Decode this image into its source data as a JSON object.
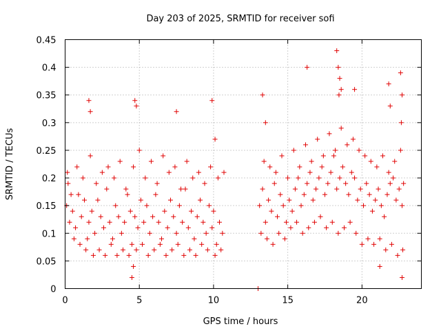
{
  "chart_data": {
    "type": "scatter",
    "title": "Day 203 of 2025, SRMTID for receiver sofi",
    "xlabel": "GPS time / hours",
    "ylabel": "SRMTID / TECUs",
    "xlim": [
      0,
      24
    ],
    "ylim": [
      0,
      0.45
    ],
    "x_ticks": [
      0,
      5,
      10,
      15,
      20
    ],
    "x_tick_labels": [
      "0",
      "5",
      "10",
      "15",
      "20"
    ],
    "y_ticks": [
      0,
      0.05,
      0.1,
      0.15,
      0.2,
      0.25,
      0.3,
      0.35,
      0.4,
      0.45
    ],
    "y_tick_labels": [
      "0",
      "0.05",
      "0.1",
      "0.15",
      "0.2",
      "0.25",
      "0.3",
      "0.35",
      "0.4",
      "0.45"
    ],
    "grid": true,
    "marker": "+",
    "color": "#e00000",
    "series": [
      {
        "name": "SRMTID",
        "x": [
          0.1,
          0.2,
          0.3,
          0.5,
          0.7,
          0.9,
          1.1,
          1.3,
          1.5,
          1.6,
          1.8,
          2.0,
          2.2,
          2.4,
          2.6,
          2.8,
          3.0,
          3.2,
          3.4,
          3.6,
          3.8,
          4.0,
          4.2,
          4.4,
          4.5,
          4.7,
          4.9,
          5.1,
          5.3,
          5.5,
          5.7,
          5.9,
          6.1,
          6.3,
          6.5,
          6.7,
          6.9,
          7.1,
          7.3,
          7.5,
          7.7,
          7.9,
          8.1,
          8.3,
          8.5,
          8.7,
          8.9,
          9.1,
          9.3,
          9.5,
          9.7,
          9.9,
          10.0,
          10.2,
          10.4,
          10.6,
          0.15,
          0.4,
          0.6,
          0.8,
          1.0,
          1.2,
          1.4,
          1.7,
          1.9,
          2.1,
          2.3,
          2.5,
          2.7,
          2.9,
          3.1,
          3.3,
          3.5,
          3.7,
          3.9,
          4.1,
          4.3,
          4.6,
          4.8,
          5.0,
          5.2,
          5.4,
          5.6,
          5.8,
          6.0,
          6.2,
          6.4,
          6.6,
          6.8,
          7.0,
          7.2,
          7.4,
          7.6,
          7.8,
          8.0,
          8.2,
          8.4,
          8.6,
          8.8,
          9.0,
          9.2,
          9.4,
          9.6,
          9.8,
          10.1,
          10.3,
          10.5,
          10.7,
          13.1,
          13.3,
          13.5,
          13.7,
          13.9,
          14.1,
          14.3,
          14.5,
          14.7,
          14.9,
          15.1,
          15.3,
          15.5,
          15.7,
          15.9,
          16.1,
          16.3,
          16.5,
          16.7,
          16.9,
          17.1,
          17.3,
          17.5,
          17.7,
          17.9,
          18.1,
          18.3,
          18.5,
          18.7,
          18.9,
          19.1,
          19.3,
          19.5,
          19.7,
          19.9,
          20.1,
          20.3,
          20.5,
          20.7,
          20.9,
          21.1,
          21.3,
          21.5,
          21.7,
          21.9,
          22.1,
          22.3,
          22.5,
          22.7,
          22.8,
          13.2,
          13.4,
          13.6,
          13.8,
          14.0,
          14.2,
          14.4,
          14.6,
          14.8,
          15.0,
          15.2,
          15.4,
          15.6,
          15.8,
          16.0,
          16.2,
          16.4,
          16.6,
          16.8,
          17.0,
          17.2,
          17.4,
          17.6,
          17.8,
          18.0,
          18.2,
          18.4,
          18.6,
          18.8,
          19.0,
          19.2,
          19.4,
          19.6,
          19.8,
          20.0,
          20.2,
          20.4,
          20.6,
          20.8,
          21.0,
          21.2,
          21.4,
          21.6,
          21.8,
          22.0,
          22.2,
          22.4,
          22.6,
          22.75,
          1.6,
          1.7,
          4.7,
          4.8,
          9.9,
          10.1,
          4.5,
          7.5,
          16.3,
          18.3,
          18.4,
          18.5,
          18.6,
          18.45,
          19.5,
          21.8,
          21.9,
          22.6,
          22.7,
          22.65,
          13.3,
          13.5,
          22.7,
          4.6,
          21.2,
          13.0
        ],
        "y": [
          0.15,
          0.19,
          0.12,
          0.14,
          0.11,
          0.17,
          0.13,
          0.16,
          0.09,
          0.12,
          0.14,
          0.1,
          0.16,
          0.13,
          0.11,
          0.18,
          0.12,
          0.09,
          0.15,
          0.13,
          0.1,
          0.12,
          0.17,
          0.14,
          0.08,
          0.13,
          0.11,
          0.16,
          0.12,
          0.15,
          0.1,
          0.13,
          0.17,
          0.12,
          0.09,
          0.14,
          0.11,
          0.16,
          0.13,
          0.1,
          0.15,
          0.12,
          0.18,
          0.11,
          0.14,
          0.09,
          0.13,
          0.16,
          0.12,
          0.1,
          0.15,
          0.11,
          0.14,
          0.08,
          0.12,
          0.1,
          0.21,
          0.17,
          0.09,
          0.22,
          0.08,
          0.2,
          0.07,
          0.24,
          0.06,
          0.19,
          0.07,
          0.21,
          0.06,
          0.22,
          0.08,
          0.2,
          0.06,
          0.23,
          0.07,
          0.18,
          0.06,
          0.22,
          0.07,
          0.25,
          0.08,
          0.2,
          0.06,
          0.23,
          0.07,
          0.19,
          0.08,
          0.24,
          0.06,
          0.21,
          0.07,
          0.22,
          0.08,
          0.18,
          0.06,
          0.23,
          0.07,
          0.2,
          0.06,
          0.21,
          0.08,
          0.19,
          0.07,
          0.22,
          0.06,
          0.2,
          0.07,
          0.21,
          0.15,
          0.18,
          0.12,
          0.16,
          0.14,
          0.19,
          0.13,
          0.17,
          0.15,
          0.12,
          0.16,
          0.14,
          0.18,
          0.2,
          0.15,
          0.17,
          0.19,
          0.21,
          0.16,
          0.18,
          0.2,
          0.22,
          0.17,
          0.19,
          0.21,
          0.24,
          0.18,
          0.2,
          0.22,
          0.19,
          0.17,
          0.21,
          0.2,
          0.16,
          0.18,
          0.15,
          0.19,
          0.17,
          0.14,
          0.16,
          0.18,
          0.15,
          0.13,
          0.17,
          0.19,
          0.2,
          0.16,
          0.18,
          0.15,
          0.19,
          0.1,
          0.23,
          0.09,
          0.22,
          0.08,
          0.21,
          0.1,
          0.24,
          0.09,
          0.2,
          0.11,
          0.25,
          0.12,
          0.22,
          0.1,
          0.26,
          0.11,
          0.23,
          0.12,
          0.27,
          0.13,
          0.24,
          0.11,
          0.28,
          0.12,
          0.25,
          0.1,
          0.29,
          0.11,
          0.26,
          0.12,
          0.27,
          0.1,
          0.25,
          0.08,
          0.24,
          0.09,
          0.23,
          0.08,
          0.22,
          0.09,
          0.24,
          0.07,
          0.21,
          0.08,
          0.23,
          0.06,
          0.25,
          0.07,
          0.34,
          0.32,
          0.34,
          0.33,
          0.34,
          0.27,
          0.02,
          0.32,
          0.4,
          0.43,
          0.4,
          0.38,
          0.36,
          0.35,
          0.36,
          0.37,
          0.33,
          0.39,
          0.35,
          0.3,
          0.35,
          0.3,
          0.02,
          0.04,
          0.04,
          0.0
        ]
      }
    ]
  }
}
